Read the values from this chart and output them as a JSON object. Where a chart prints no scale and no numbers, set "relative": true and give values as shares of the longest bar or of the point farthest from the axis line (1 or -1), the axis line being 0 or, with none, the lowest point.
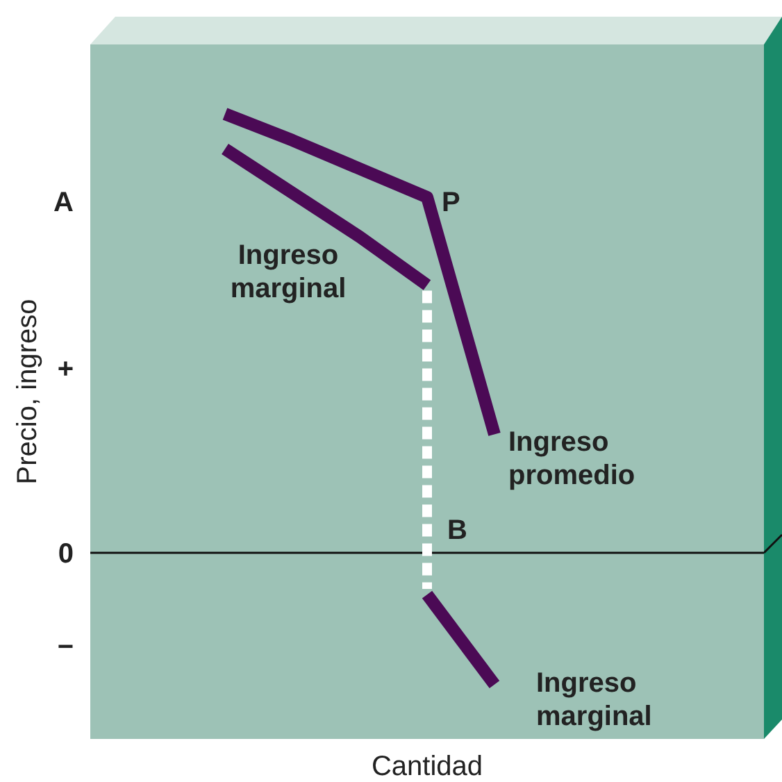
{
  "chart_data": {
    "type": "line",
    "relative": true,
    "xlabel": "Cantidad",
    "ylabel": "Precio, ingreso",
    "categories": [
      null,
      null,
      null,
      null,
      null,
      null,
      null,
      null,
      null,
      null,
      null
    ],
    "series": [
      {
        "name": "Ingreso promedio",
        "color": "#4b0a55",
        "values": [
          null,
          null,
          1,
          0.94,
          0.875,
          0.81,
          0.27,
          null,
          null,
          null,
          null
        ]
      },
      {
        "name": "Ingreso marginal",
        "color": "#4b0a55",
        "values": [
          null,
          null,
          0.92,
          0.82,
          0.72,
          0.61,
          null,
          null,
          null,
          null,
          null
        ]
      },
      {
        "name": "Ingreso marginal",
        "color": "#4b0a55",
        "values": [
          null,
          null,
          null,
          null,
          null,
          -0.095,
          -0.3,
          null,
          null,
          null,
          null
        ]
      }
    ],
    "annotations": [
      "A",
      "+",
      "0",
      "−",
      "P",
      "B"
    ]
  }
}
